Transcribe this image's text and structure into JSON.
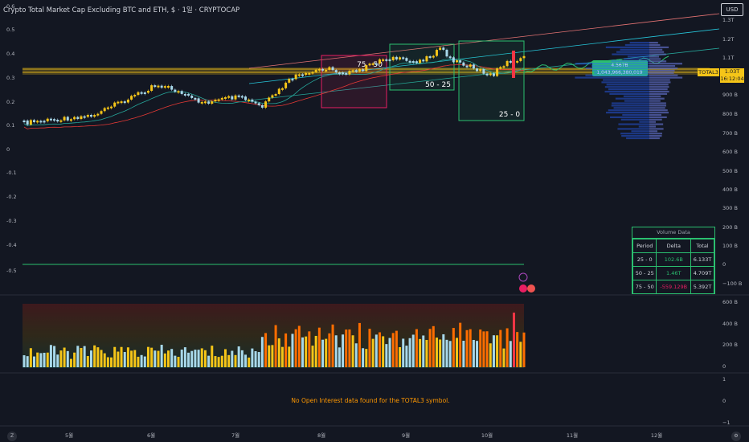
{
  "header": {
    "title": "Crypto Total Market Cap Excluding BTC and ETH, $ · 1일 · CRYPTOCAP",
    "currency_button": "USD"
  },
  "chart_data": [
    {
      "type": "line",
      "panel": "main",
      "left_axis_ticks": [
        "0.6",
        "0.5",
        "0.4",
        "0.3",
        "0.2",
        "0.1",
        "0",
        "-0.1",
        "-0.2",
        "-0.3",
        "-0.4",
        "-0.5"
      ],
      "right_axis_ticks": [
        "1.3T",
        "1.2T",
        "1.1T",
        "900 B",
        "800 B",
        "700 B",
        "600 B",
        "500 B",
        "400 B",
        "300 B",
        "200 B",
        "100 B",
        "0",
        "−100 B"
      ],
      "x_tick_labels": [
        "5월",
        "6월",
        "7월",
        "8월",
        "9월",
        "10월",
        "11월",
        "12월"
      ],
      "series": [
        {
          "name": "TOTAL3",
          "last_value_label": "1.03T",
          "countdown": "16:12:04"
        }
      ],
      "annotations": [
        {
          "text": "75 - 50",
          "color": "#e91e63"
        },
        {
          "text": "50 - 25",
          "color": "#2bbf6f"
        },
        {
          "text": "25 - 0",
          "color": "#2bbf6f"
        }
      ],
      "projection_label": {
        "line1": "4.567B",
        "line2": "1,043,966,380,019"
      }
    },
    {
      "type": "bar",
      "panel": "volume",
      "right_axis_ticks": [
        "600 B",
        "400 B",
        "200 B",
        "0"
      ]
    },
    {
      "type": "line",
      "panel": "open_interest",
      "right_axis_ticks": [
        "1",
        "0",
        "−1"
      ],
      "message": "No Open Interest data found for the TOTAL3 symbol."
    }
  ],
  "volume_table": {
    "title": "Volume Data",
    "headers": [
      "Period",
      "Delta",
      "Total"
    ],
    "rows": [
      {
        "period": "25 - 0",
        "delta": "102.6B",
        "total": "6.133T",
        "delta_color": "#2bbf6f"
      },
      {
        "period": "50 - 25",
        "delta": "1.46T",
        "total": "4.709T",
        "delta_color": "#2bbf6f"
      },
      {
        "period": "75 - 50",
        "delta": "-559.129B",
        "total": "5.392T",
        "delta_color": "#e91e63"
      }
    ]
  },
  "colors": {
    "background": "#131722",
    "candle_up": "#f5c518",
    "candle_down": "#a8d8ea",
    "accent_green": "#2bbf6f",
    "accent_pink": "#e91e63",
    "accent_red": "#f23645",
    "ma_line": "#26a69a"
  }
}
